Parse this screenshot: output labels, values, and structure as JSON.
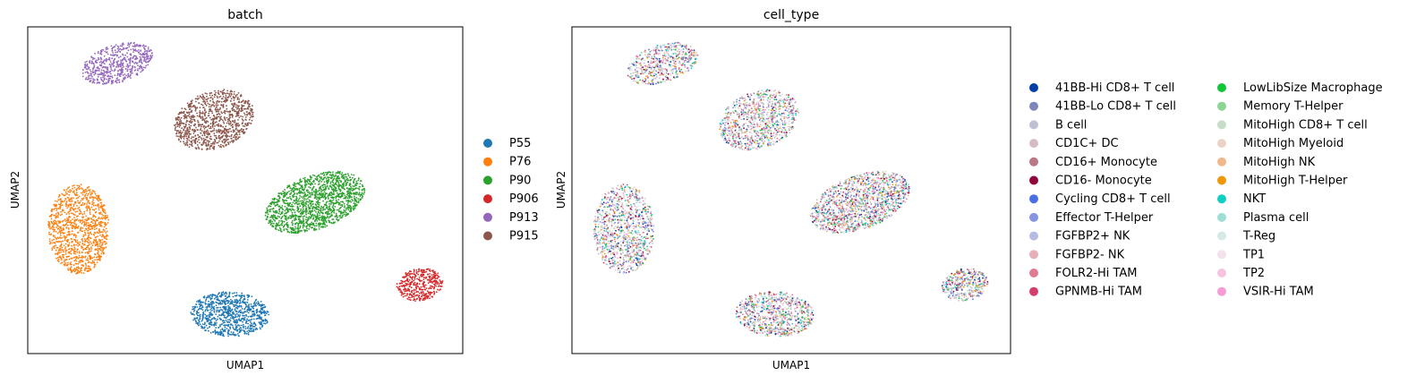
{
  "chart_data": [
    {
      "type": "scatter",
      "title": "batch",
      "xlabel": "UMAP1",
      "ylabel": "UMAP2",
      "grid": false,
      "legend_position": "right",
      "legend": [
        {
          "label": "P55",
          "color": "#1f77b4"
        },
        {
          "label": "P76",
          "color": "#ff7f0e"
        },
        {
          "label": "P90",
          "color": "#2ca02c"
        },
        {
          "label": "P906",
          "color": "#d62728"
        },
        {
          "label": "P913",
          "color": "#9467bd"
        },
        {
          "label": "P915",
          "color": "#8c564b"
        }
      ]
    },
    {
      "type": "scatter",
      "title": "cell_type",
      "xlabel": "UMAP1",
      "ylabel": "UMAP2",
      "grid": false,
      "legend_position": "right",
      "legend": [
        {
          "label": "41BB-Hi CD8+ T cell",
          "color": "#023fa5"
        },
        {
          "label": "41BB-Lo CD8+ T cell",
          "color": "#7d87b9"
        },
        {
          "label": "B cell",
          "color": "#bec1d4"
        },
        {
          "label": "CD1C+ DC",
          "color": "#d6bcc0"
        },
        {
          "label": "CD16+ Monocyte",
          "color": "#bb7784"
        },
        {
          "label": "CD16- Monocyte",
          "color": "#8e063b"
        },
        {
          "label": "Cycling CD8+ T cell",
          "color": "#4a6fe3"
        },
        {
          "label": "Effector T-Helper",
          "color": "#8595e1"
        },
        {
          "label": "FGFBP2+ NK",
          "color": "#b5bbe3"
        },
        {
          "label": "FGFBP2- NK",
          "color": "#e6afb9"
        },
        {
          "label": "FOLR2-Hi TAM",
          "color": "#e07b91"
        },
        {
          "label": "GPNMB-Hi TAM",
          "color": "#d33f6a"
        },
        {
          "label": "LowLibSize Macrophage",
          "color": "#11c638"
        },
        {
          "label": "Memory T-Helper",
          "color": "#8dd593"
        },
        {
          "label": "MitoHigh CD8+ T cell",
          "color": "#c6dec7"
        },
        {
          "label": "MitoHigh Myeloid",
          "color": "#ead3c6"
        },
        {
          "label": "MitoHigh NK",
          "color": "#f0b98d"
        },
        {
          "label": "MitoHigh T-Helper",
          "color": "#ef9708"
        },
        {
          "label": "NKT",
          "color": "#0fcfc0"
        },
        {
          "label": "Plasma cell",
          "color": "#9cded6"
        },
        {
          "label": "T-Reg",
          "color": "#d5eae7"
        },
        {
          "label": "TP1",
          "color": "#f3e1eb"
        },
        {
          "label": "TP2",
          "color": "#f6c4e1"
        },
        {
          "label": "VSIR-Hi TAM",
          "color": "#f79cd4"
        }
      ]
    }
  ]
}
